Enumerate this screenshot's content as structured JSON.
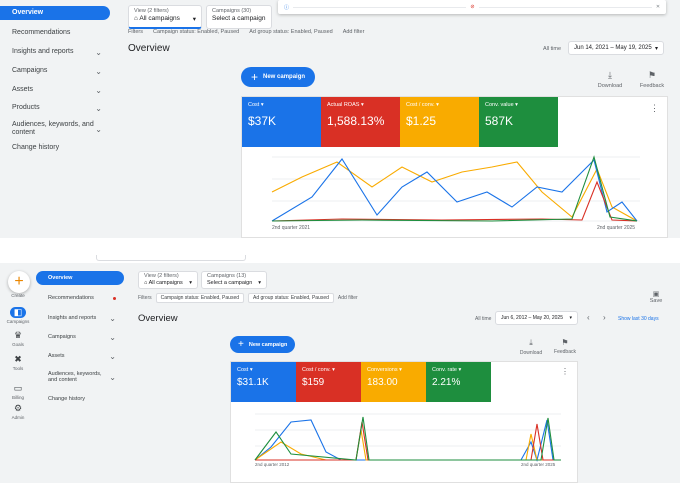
{
  "s1": {
    "nav": [
      {
        "label": "Overview",
        "active": true,
        "chev": false
      },
      {
        "label": "Recommendations",
        "active": false,
        "chev": false
      },
      {
        "label": "Insights and reports",
        "active": false,
        "chev": true
      },
      {
        "label": "Campaigns",
        "active": false,
        "chev": true
      },
      {
        "label": "Assets",
        "active": false,
        "chev": true
      },
      {
        "label": "Products",
        "active": false,
        "chev": true
      },
      {
        "label": "Audiences, keywords, and content",
        "active": false,
        "chev": true
      },
      {
        "label": "Change history",
        "active": false,
        "chev": false
      }
    ],
    "view_label": "View (2 filters)",
    "view_value": "All campaigns",
    "campaigns_label": "Campaigns (30)",
    "campaigns_value": "Select a campaign",
    "filters_label": "Filters",
    "filter_chips": [
      "Campaign status: Enabled, Paused",
      "Ad group status: Enabled, Paused"
    ],
    "add_filter": "Add filter",
    "title": "Overview",
    "range_label": "All time",
    "range_value": "Jun 14, 2021 – May 19, 2025",
    "new_campaign": "New campaign",
    "download": "Download",
    "feedback": "Feedback",
    "metrics": [
      {
        "label": "Cost",
        "value": "$37K",
        "color": "#1a73e8"
      },
      {
        "label": "Actual ROAS",
        "value": "1,588.13%",
        "color": "#d93025"
      },
      {
        "label": "Cost / conv.",
        "value": "$1.25",
        "color": "#f9ab00"
      },
      {
        "label": "Conv. value",
        "value": "587K",
        "color": "#1e8e3e"
      }
    ],
    "x_start": "2nd quarter 2021",
    "x_end": "2nd quarter 2025"
  },
  "s2": {
    "rail": [
      {
        "label": "Create",
        "icon": "plus-icon"
      },
      {
        "label": "Campaigns",
        "icon": "campaigns-icon",
        "active": true
      },
      {
        "label": "Goals",
        "icon": "trophy-icon"
      },
      {
        "label": "Tools",
        "icon": "tools-icon"
      },
      {
        "label": "Billing",
        "icon": "billing-icon"
      },
      {
        "label": "Admin",
        "icon": "gear-icon"
      }
    ],
    "nav": [
      {
        "label": "Overview",
        "active": true,
        "chev": false,
        "dot": false
      },
      {
        "label": "Recommendations",
        "active": false,
        "chev": false,
        "dot": true
      },
      {
        "label": "Insights and reports",
        "active": false,
        "chev": true,
        "dot": false
      },
      {
        "label": "Campaigns",
        "active": false,
        "chev": true,
        "dot": false
      },
      {
        "label": "Assets",
        "active": false,
        "chev": true,
        "dot": false
      },
      {
        "label": "Audiences, keywords, and content",
        "active": false,
        "chev": true,
        "dot": false
      },
      {
        "label": "Change history",
        "active": false,
        "chev": false,
        "dot": false
      }
    ],
    "view_label": "View (2 filters)",
    "view_value": "All campaigns",
    "campaigns_label": "Campaigns (13)",
    "campaigns_value": "Select a campaign",
    "filters_label": "Filters",
    "filter_chips": [
      "Campaign status: Enabled, Paused",
      "Ad group status: Enabled, Paused"
    ],
    "add_filter": "Add filter",
    "save": "Save",
    "title": "Overview",
    "range_label": "All time",
    "range_value": "Jun 6, 2012 – May 20, 2025",
    "show_last": "Show last 30 days",
    "new_campaign": "New campaign",
    "download": "Download",
    "feedback": "Feedback",
    "metrics": [
      {
        "label": "Cost",
        "value": "$31.1K",
        "color": "#1a73e8"
      },
      {
        "label": "Cost / conv.",
        "value": "$159",
        "color": "#d93025"
      },
      {
        "label": "Conversions",
        "value": "183.00",
        "color": "#f9ab00"
      },
      {
        "label": "Conv. rate",
        "value": "2.21%",
        "color": "#1e8e3e"
      }
    ],
    "x_start": "2nd quarter 2012",
    "x_end": "2nd quarter 2025"
  }
}
